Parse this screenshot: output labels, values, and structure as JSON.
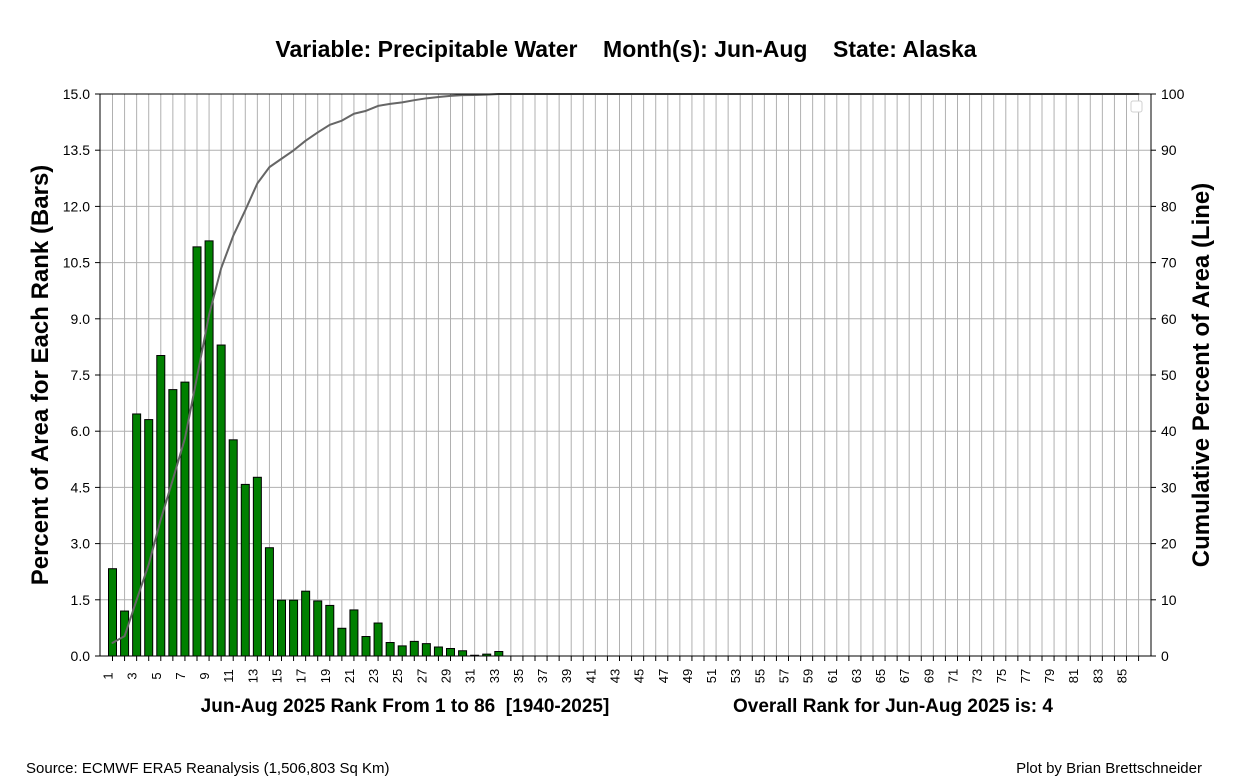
{
  "chart_data": {
    "type": "bar",
    "title": "Variable: Precipitable Water    Month(s): Jun-Aug    State: Alaska",
    "xlabel_left": "Jun-Aug 2025 Rank From 1 to 86  [1940-2025]",
    "xlabel_right": "Overall Rank for Jun-Aug 2025 is: 4",
    "ylabel_left": "Percent of Area for Each Rank (Bars)",
    "ylabel_right": "Cumulative Percent of Area (Line)",
    "ylim_left": [
      0,
      15
    ],
    "ylim_right": [
      0,
      100
    ],
    "grid": true,
    "legend": "top-right (empty)",
    "x_tick_labels": [
      "1",
      "3",
      "5",
      "7",
      "9",
      "11",
      "13",
      "15",
      "17",
      "19",
      "21",
      "23",
      "25",
      "27",
      "29",
      "31",
      "33",
      "35",
      "37",
      "39",
      "41",
      "43",
      "45",
      "47",
      "49",
      "51",
      "53",
      "55",
      "57",
      "59",
      "61",
      "63",
      "65",
      "67",
      "69",
      "71",
      "73",
      "75",
      "77",
      "79",
      "81",
      "83",
      "85"
    ],
    "y_left_tick_labels": [
      "0.0",
      "1.5",
      "3.0",
      "4.5",
      "6.0",
      "7.5",
      "9.0",
      "10.5",
      "12.0",
      "13.5",
      "15.0"
    ],
    "y_right_tick_labels": [
      "0",
      "10",
      "20",
      "30",
      "40",
      "50",
      "60",
      "70",
      "80",
      "90",
      "100"
    ],
    "bar_color": "#008000",
    "line_color": "#666666",
    "ranks": [
      1,
      2,
      3,
      4,
      5,
      6,
      7,
      8,
      9,
      10,
      11,
      12,
      13,
      14,
      15,
      16,
      17,
      18,
      19,
      20,
      21,
      22,
      23,
      24,
      25,
      26,
      27,
      28,
      29,
      30,
      31,
      32,
      33,
      34,
      35,
      36,
      37,
      38,
      39,
      40,
      41,
      42,
      43,
      44,
      45,
      46,
      47,
      48,
      49,
      50,
      51,
      52,
      53,
      54,
      55,
      56,
      57,
      58,
      59,
      60,
      61,
      62,
      63,
      64,
      65,
      66,
      67,
      68,
      69,
      70,
      71,
      72,
      73,
      74,
      75,
      76,
      77,
      78,
      79,
      80,
      81,
      82,
      83,
      84,
      85,
      86
    ],
    "series": [
      {
        "values": [
          2.33,
          1.2,
          6.46,
          6.31,
          8.02,
          7.11,
          7.31,
          10.92,
          11.08,
          8.3,
          5.77,
          4.58,
          4.77,
          2.89,
          1.49,
          1.49,
          1.73,
          1.47,
          1.35,
          0.74,
          1.23,
          0.52,
          0.88,
          0.36,
          0.27,
          0.39,
          0.33,
          0.24,
          0.2,
          0.14,
          0.02,
          0.05,
          0.12,
          0,
          0,
          0,
          0,
          0,
          0,
          0,
          0,
          0,
          0,
          0,
          0,
          0,
          0,
          0,
          0,
          0,
          0,
          0,
          0,
          0,
          0,
          0,
          0,
          0,
          0,
          0,
          0,
          0,
          0,
          0,
          0,
          0,
          0,
          0,
          0,
          0,
          0,
          0,
          0,
          0,
          0,
          0,
          0,
          0,
          0,
          0,
          0,
          0,
          0,
          0,
          0,
          0
        ]
      }
    ]
  },
  "footer": {
    "source": "Source: ECMWF ERA5 Reanalysis (1,506,803 Sq Km)",
    "credit": "Plot by Brian Brettschneider"
  }
}
